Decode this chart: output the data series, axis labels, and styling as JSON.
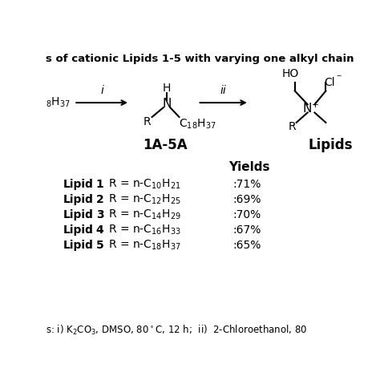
{
  "background_color": "#ffffff",
  "figsize": [
    4.74,
    4.74
  ],
  "dpi": 100,
  "title": "s of cationic Lipids 1-5 with varying one alkyl chain",
  "left_chain": "$_{8}$H$_{37}$",
  "arrow_i_label": "i",
  "arrow_ii_label": "ii",
  "mid_mol_H": "H",
  "mid_mol_N": "N",
  "mid_mol_R": "R",
  "mid_mol_chain": "C$_{18}$H$_{37}$",
  "right_HO": "HO",
  "right_Cl": "Cl",
  "right_Cl_charge": "$^{-}$",
  "right_N": "N$^{+}$",
  "right_R1": "R",
  "right_R2": "",
  "label_1A5A": "1A-5A",
  "label_Lipids": "Lipids",
  "yields_header": "Yields",
  "lipid_rows": [
    [
      "1",
      "n-C$_{10}$H$_{21}$",
      ":71%"
    ],
    [
      "2",
      "n-C$_{12}$H$_{25}$",
      ":69%"
    ],
    [
      "3",
      "n-C$_{14}$H$_{29}$",
      ":70%"
    ],
    [
      "4",
      "n-C$_{16}$H$_{33}$",
      ":67%"
    ],
    [
      "5",
      "n-C$_{18}$H$_{37}$",
      ":65%"
    ]
  ],
  "bottom_note": "s: i) K$_2$CO$_3$, DMSO, 80$^\\circ$C, 12 h;  ii)  2-Chloroethanol, 80"
}
